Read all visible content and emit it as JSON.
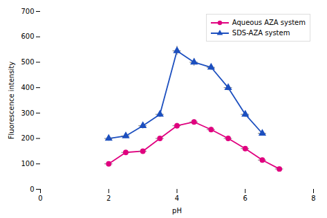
{
  "chart_data": {
    "type": "line",
    "xlabel": "pH",
    "ylabel": "Fluorescence intensity",
    "xlim": [
      0,
      8
    ],
    "ylim": [
      0,
      700
    ],
    "xticks": [
      0,
      2,
      4,
      6,
      8
    ],
    "yticks": [
      0,
      100,
      200,
      300,
      400,
      500,
      600,
      700
    ],
    "grid": false,
    "legend": "upper right",
    "series": [
      {
        "name": "Aqueous AZA system",
        "color": "#E0007F",
        "marker": "circle",
        "x": [
          2.0,
          2.5,
          3.0,
          3.5,
          4.0,
          4.5,
          5.0,
          5.5,
          6.0,
          6.5,
          7.0
        ],
        "values": [
          100,
          145,
          150,
          200,
          250,
          265,
          235,
          200,
          160,
          115,
          80
        ],
        "xerr": [
          0.12,
          0.12,
          0.12,
          0.12,
          0.12,
          0.12,
          0.12,
          0.12,
          0.12,
          0.12,
          0.12
        ],
        "yerr": [
          8,
          8,
          8,
          8,
          10,
          10,
          10,
          10,
          8,
          8,
          8
        ]
      },
      {
        "name": "SDS-AZA system",
        "color": "#1C4FBF",
        "marker": "triangle",
        "x": [
          2.0,
          2.5,
          3.0,
          3.5,
          4.0,
          4.5,
          5.0,
          5.5,
          6.0,
          6.5
        ],
        "values": [
          200,
          210,
          250,
          295,
          545,
          500,
          480,
          400,
          295,
          220
        ],
        "xerr": [
          0.12,
          0.12,
          0.12,
          0.12,
          0.12,
          0.12,
          0.12,
          0.12,
          0.12,
          0.12
        ],
        "yerr": [
          10,
          10,
          12,
          12,
          18,
          15,
          12,
          12,
          12,
          10
        ]
      }
    ]
  }
}
